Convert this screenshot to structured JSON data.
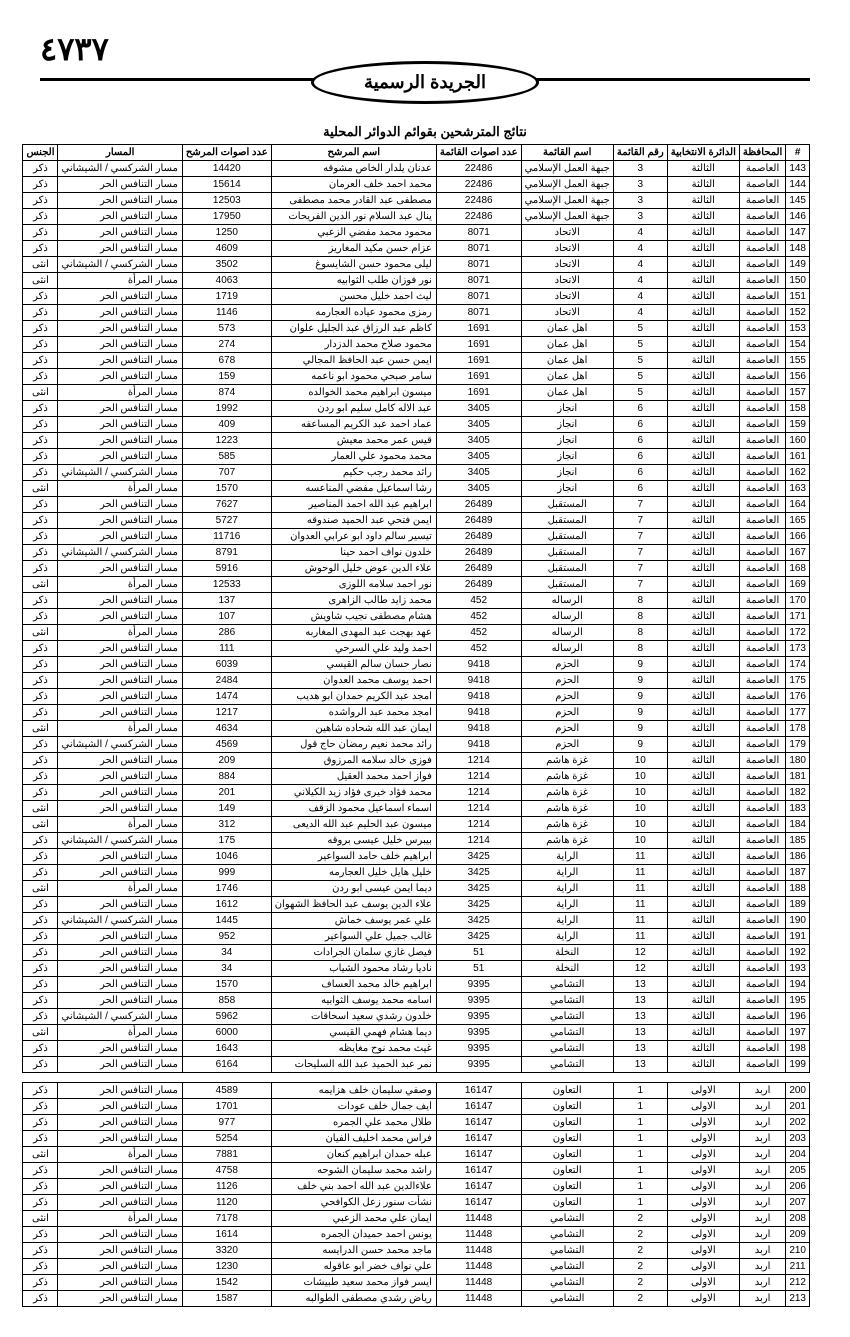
{
  "page_number": "٤٧٣٧",
  "gazette_title": "الجريدة الرسمية",
  "table_title": "نتائج المترشحين بقوائم الدوائر المحلية",
  "columns": [
    "#",
    "المحافظة",
    "الدائرة الانتخابية",
    "رقم القائمة",
    "اسم القائمة",
    "عدد اصوات القائمة",
    "اسم المرشح",
    "عدد اصوات المرشح",
    "المسار",
    "الجنس"
  ],
  "rows1": [
    [
      "143",
      "العاصمة",
      "الثالثة",
      "3",
      "جبهة العمل الإسلامي",
      "22486",
      "عدنان يلدار الخاص مشوقه",
      "14420",
      "مسار الشركسي / الشيشاني",
      "ذكر"
    ],
    [
      "144",
      "العاصمة",
      "الثالثة",
      "3",
      "جبهة العمل الإسلامي",
      "22486",
      "محمد احمد خلف العرمان",
      "15614",
      "مسار التنافس الحر",
      "ذكر"
    ],
    [
      "145",
      "العاصمة",
      "الثالثة",
      "3",
      "جبهة العمل الإسلامي",
      "22486",
      "مصطفى عبد القادر محمد مصطفى",
      "12503",
      "مسار التنافس الحر",
      "ذكر"
    ],
    [
      "146",
      "العاصمة",
      "الثالثة",
      "3",
      "جبهة العمل الإسلامي",
      "22486",
      "ينال عبد السلام نور الدين الفريحات",
      "17950",
      "مسار التنافس الحر",
      "ذكر"
    ],
    [
      "147",
      "العاصمة",
      "الثالثة",
      "4",
      "الاتحاد",
      "8071",
      "محمود محمد مفضي الزعبي",
      "1250",
      "مسار التنافس الحر",
      "ذكر"
    ],
    [
      "148",
      "العاصمة",
      "الثالثة",
      "4",
      "الاتحاد",
      "8071",
      "عزام حسن مكيد المغاريز",
      "4609",
      "مسار التنافس الحر",
      "ذكر"
    ],
    [
      "149",
      "العاصمة",
      "الثالثة",
      "4",
      "الاتحاد",
      "8071",
      "ليلى محمود حسن الشايسوغ",
      "3502",
      "مسار الشركسي / الشيشاني",
      "انثى"
    ],
    [
      "150",
      "العاصمة",
      "الثالثة",
      "4",
      "الاتحاد",
      "8071",
      "نور فوزان طلب الثوابيه",
      "4063",
      "مسار المرأة",
      "انثى"
    ],
    [
      "151",
      "العاصمة",
      "الثالثة",
      "4",
      "الاتحاد",
      "8071",
      "ليث احمد خليل محسن",
      "1719",
      "مسار التنافس الحر",
      "ذكر"
    ],
    [
      "152",
      "العاصمة",
      "الثالثة",
      "4",
      "الاتحاد",
      "8071",
      "رمزى محمود عياده العجارمه",
      "1146",
      "مسار التنافس الحر",
      "ذكر"
    ],
    [
      "153",
      "العاصمة",
      "الثالثة",
      "5",
      "اهل عمان",
      "1691",
      "كاظم عبد الرزاق عبد الجليل علوان",
      "573",
      "مسار التنافس الحر",
      "ذكر"
    ],
    [
      "154",
      "العاصمة",
      "الثالثة",
      "5",
      "اهل عمان",
      "1691",
      "محمود صلاح محمد الدزدار",
      "274",
      "مسار التنافس الحر",
      "ذكر"
    ],
    [
      "155",
      "العاصمة",
      "الثالثة",
      "5",
      "اهل عمان",
      "1691",
      "ايمن حسن عبد الحافظ المجالي",
      "678",
      "مسار التنافس الحر",
      "ذكر"
    ],
    [
      "156",
      "العاصمة",
      "الثالثة",
      "5",
      "اهل عمان",
      "1691",
      "سامر صبحي محمود ابو ناعمه",
      "159",
      "مسار التنافس الحر",
      "ذكر"
    ],
    [
      "157",
      "العاصمة",
      "الثالثة",
      "5",
      "اهل عمان",
      "1691",
      "ميسون ابراهيم محمد الخوالده",
      "874",
      "مسار المرأة",
      "انثى"
    ],
    [
      "158",
      "العاصمة",
      "الثالثة",
      "6",
      "انجاز",
      "3405",
      "عبد الاله كامل سليم ابو ردن",
      "1992",
      "مسار التنافس الحر",
      "ذكر"
    ],
    [
      "159",
      "العاصمة",
      "الثالثة",
      "6",
      "انجاز",
      "3405",
      "عماد احمد عبد الكريم المساعفه",
      "409",
      "مسار التنافس الحر",
      "ذكر"
    ],
    [
      "160",
      "العاصمة",
      "الثالثة",
      "6",
      "انجاز",
      "3405",
      "قيس عمر محمد معيش",
      "1223",
      "مسار التنافس الحر",
      "ذكر"
    ],
    [
      "161",
      "العاصمة",
      "الثالثة",
      "6",
      "انجاز",
      "3405",
      "محمد محمود علي العمار",
      "585",
      "مسار التنافس الحر",
      "ذكر"
    ],
    [
      "162",
      "العاصمة",
      "الثالثة",
      "6",
      "انجاز",
      "3405",
      "رائد محمد رجب حكيم",
      "707",
      "مسار الشركسي / الشيشاني",
      "ذكر"
    ],
    [
      "163",
      "العاصمة",
      "الثالثة",
      "6",
      "انجاز",
      "3405",
      "رشا اسماعيل مفضي المناعسه",
      "1570",
      "مسار المرأة",
      "انثى"
    ],
    [
      "164",
      "العاصمة",
      "الثالثة",
      "7",
      "المستقبل",
      "26489",
      "ابراهيم عبد الله احمد المناصير",
      "7627",
      "مسار التنافس الحر",
      "ذكر"
    ],
    [
      "165",
      "العاصمة",
      "الثالثة",
      "7",
      "المستقبل",
      "26489",
      "ايمن فتحي عبد الحميد صندوقه",
      "5727",
      "مسار التنافس الحر",
      "ذكر"
    ],
    [
      "166",
      "العاصمة",
      "الثالثة",
      "7",
      "المستقبل",
      "26489",
      "تيسير سالم داود ابو عرابي العدوان",
      "11716",
      "مسار التنافس الحر",
      "ذكر"
    ],
    [
      "167",
      "العاصمة",
      "الثالثة",
      "7",
      "المستقبل",
      "26489",
      "خلدون نواف احمد حينا",
      "8791",
      "مسار الشركسي / الشيشاني",
      "ذكر"
    ],
    [
      "168",
      "العاصمة",
      "الثالثة",
      "7",
      "المستقبل",
      "26489",
      "علاء الدين عوض خليل الوحوش",
      "5916",
      "مسار التنافس الحر",
      "ذكر"
    ],
    [
      "169",
      "العاصمة",
      "الثالثة",
      "7",
      "المستقبل",
      "26489",
      "نور احمد سلامه اللوزى",
      "12533",
      "مسار المرأة",
      "انثى"
    ],
    [
      "170",
      "العاصمة",
      "الثالثة",
      "8",
      "الرساله",
      "452",
      "محمد زايد طالب الزاهرى",
      "137",
      "مسار التنافس الحر",
      "ذكر"
    ],
    [
      "171",
      "العاصمة",
      "الثالثة",
      "8",
      "الرساله",
      "452",
      "هشام مصطفى نجيب شاويش",
      "107",
      "مسار التنافس الحر",
      "ذكر"
    ],
    [
      "172",
      "العاصمة",
      "الثالثة",
      "8",
      "الرساله",
      "452",
      "عهد بهجت عبد المهدى المغاربه",
      "286",
      "مسار المرأة",
      "انثى"
    ],
    [
      "173",
      "العاصمة",
      "الثالثة",
      "8",
      "الرساله",
      "452",
      "احمد وليد علي السرحي",
      "111",
      "مسار التنافس الحر",
      "ذكر"
    ],
    [
      "174",
      "العاصمة",
      "الثالثة",
      "9",
      "الحزم",
      "9418",
      "نصار حسان سالم القيسي",
      "6039",
      "مسار التنافس الحر",
      "ذكر"
    ],
    [
      "175",
      "العاصمة",
      "الثالثة",
      "9",
      "الحزم",
      "9418",
      "احمد يوسف محمد العدوان",
      "2484",
      "مسار التنافس الحر",
      "ذكر"
    ],
    [
      "176",
      "العاصمة",
      "الثالثة",
      "9",
      "الحزم",
      "9418",
      "امجد عبد الكريم حمدان ابو هديب",
      "1474",
      "مسار التنافس الحر",
      "ذكر"
    ],
    [
      "177",
      "العاصمة",
      "الثالثة",
      "9",
      "الحزم",
      "9418",
      "امجد محمد عبد الرواشده",
      "1217",
      "مسار التنافس الحر",
      "ذكر"
    ],
    [
      "178",
      "العاصمة",
      "الثالثة",
      "9",
      "الحزم",
      "9418",
      "ايمان عبد الله شحاده شاهين",
      "4634",
      "مسار المرأة",
      "انثى"
    ],
    [
      "179",
      "العاصمة",
      "الثالثة",
      "9",
      "الحزم",
      "9418",
      "رائد محمد نعيم رمضان حاج قول",
      "4569",
      "مسار الشركسي / الشيشاني",
      "ذكر"
    ],
    [
      "180",
      "العاصمة",
      "الثالثة",
      "10",
      "غزة هاشم",
      "1214",
      "فوزى خالد سلامه المرزوق",
      "209",
      "مسار التنافس الحر",
      "ذكر"
    ],
    [
      "181",
      "العاصمة",
      "الثالثة",
      "10",
      "غزة هاشم",
      "1214",
      "فواز احمد محمد العقيل",
      "884",
      "مسار التنافس الحر",
      "ذكر"
    ],
    [
      "182",
      "العاصمة",
      "الثالثة",
      "10",
      "غزة هاشم",
      "1214",
      "محمد فؤاد خيرى فؤاد زيد الكيلاني",
      "201",
      "مسار التنافس الحر",
      "ذكر"
    ],
    [
      "183",
      "العاصمة",
      "الثالثة",
      "10",
      "غزة هاشم",
      "1214",
      "اسماء اسماعيل محمود الزقف",
      "149",
      "مسار التنافس الحر",
      "انثى"
    ],
    [
      "184",
      "العاصمة",
      "الثالثة",
      "10",
      "غزة هاشم",
      "1214",
      "ميسون عبد الحليم عبد الله الديعى",
      "312",
      "مسار المرأة",
      "انثى"
    ],
    [
      "185",
      "العاصمة",
      "الثالثة",
      "10",
      "غزة هاشم",
      "1214",
      "بيبرس خليل عيسى بروقه",
      "175",
      "مسار الشركسي / الشيشاني",
      "ذكر"
    ],
    [
      "186",
      "العاصمة",
      "الثالثة",
      "11",
      "الراية",
      "3425",
      "ابراهيم خلف حامد السواعير",
      "1046",
      "مسار التنافس الحر",
      "ذكر"
    ],
    [
      "187",
      "العاصمة",
      "الثالثة",
      "11",
      "الراية",
      "3425",
      "خليل هايل خليل العجارمه",
      "999",
      "مسار التنافس الحر",
      "ذكر"
    ],
    [
      "188",
      "العاصمة",
      "الثالثة",
      "11",
      "الراية",
      "3425",
      "ديما ايمن عيسى ابو ردن",
      "1746",
      "مسار المرأة",
      "انثى"
    ],
    [
      "189",
      "العاصمة",
      "الثالثة",
      "11",
      "الراية",
      "3425",
      "علاء الدين يوسف عبد الحافظ الشهوان",
      "1612",
      "مسار التنافس الحر",
      "ذكر"
    ],
    [
      "190",
      "العاصمة",
      "الثالثة",
      "11",
      "الراية",
      "3425",
      "علي عمر يوسف خماش",
      "1445",
      "مسار الشركسي / الشيشاني",
      "ذكر"
    ],
    [
      "191",
      "العاصمة",
      "الثالثة",
      "11",
      "الراية",
      "3425",
      "غالب جميل علي السواعير",
      "952",
      "مسار التنافس الحر",
      "ذكر"
    ],
    [
      "192",
      "العاصمة",
      "الثالثة",
      "12",
      "النخلة",
      "51",
      "فيصل غازي سلمان الجرادات",
      "34",
      "مسار التنافس الحر",
      "ذكر"
    ],
    [
      "193",
      "العاصمة",
      "الثالثة",
      "12",
      "النخلة",
      "51",
      "ناديا رشاد محمود الشياب",
      "34",
      "مسار التنافس الحر",
      "ذكر"
    ],
    [
      "194",
      "العاصمة",
      "الثالثة",
      "13",
      "التشامي",
      "9395",
      "ابراهيم خالد محمد العساف",
      "1570",
      "مسار التنافس الحر",
      "ذكر"
    ],
    [
      "195",
      "العاصمة",
      "الثالثة",
      "13",
      "التشامي",
      "9395",
      "اسامه محمد يوسف الثوابيه",
      "858",
      "مسار التنافس الحر",
      "ذكر"
    ],
    [
      "196",
      "العاصمة",
      "الثالثة",
      "13",
      "التشامي",
      "9395",
      "خلدون رشدي سعيد اسحاقات",
      "5962",
      "مسار الشركسي / الشيشاني",
      "ذكر"
    ],
    [
      "197",
      "العاصمة",
      "الثالثة",
      "13",
      "التشامي",
      "9395",
      "ديما هشام فهمي القيسي",
      "6000",
      "مسار المرأة",
      "انثى"
    ],
    [
      "198",
      "العاصمة",
      "الثالثة",
      "13",
      "التشامي",
      "9395",
      "غيث محمد نوح مغايظه",
      "1643",
      "مسار التنافس الحر",
      "ذكر"
    ],
    [
      "199",
      "العاصمة",
      "الثالثة",
      "13",
      "التشامي",
      "9395",
      "نمر عبد الحميد عبد الله السليحات",
      "6164",
      "مسار التنافس الحر",
      "ذكر"
    ]
  ],
  "rows2": [
    [
      "200",
      "اربد",
      "الاولى",
      "1",
      "التعاون",
      "16147",
      "وصفي سليمان خلف هزايمه",
      "4589",
      "مسار التنافس الحر",
      "ذكر"
    ],
    [
      "201",
      "اربد",
      "الاولى",
      "1",
      "التعاون",
      "16147",
      "ايف جمال خلف عودات",
      "1701",
      "مسار التنافس الحر",
      "ذكر"
    ],
    [
      "202",
      "اربد",
      "الاولى",
      "1",
      "التعاون",
      "16147",
      "طلال محمد علي الجمره",
      "977",
      "مسار التنافس الحر",
      "ذكر"
    ],
    [
      "203",
      "اربد",
      "الاولى",
      "1",
      "التعاون",
      "16147",
      "فراس محمد اخليف الفيان",
      "5254",
      "مسار التنافس الحر",
      "ذكر"
    ],
    [
      "204",
      "اربد",
      "الاولى",
      "1",
      "التعاون",
      "16147",
      "عبله حمدان ابراهيم كنعان",
      "7881",
      "مسار المرأة",
      "انثى"
    ],
    [
      "205",
      "اربد",
      "الاولى",
      "1",
      "التعاون",
      "16147",
      "راشد محمد سليمان الشوحه",
      "4758",
      "مسار التنافس الحر",
      "ذكر"
    ],
    [
      "206",
      "اربد",
      "الاولى",
      "1",
      "التعاون",
      "16147",
      "علاءالدين عبد الله احمد بني خلف",
      "1126",
      "مسار التنافس الحر",
      "ذكر"
    ],
    [
      "207",
      "اربد",
      "الاولى",
      "1",
      "التعاون",
      "16147",
      "نشأت سنور زعل الكوافحي",
      "1120",
      "مسار التنافس الحر",
      "ذكر"
    ],
    [
      "208",
      "اربد",
      "الاولى",
      "2",
      "التشامي",
      "11448",
      "ايمان علي محمد الزعبي",
      "7178",
      "مسار المرأة",
      "انثى"
    ],
    [
      "209",
      "اربد",
      "الاولى",
      "2",
      "التشامي",
      "11448",
      "يونس احمد حميدان الجمره",
      "1614",
      "مسار التنافس الحر",
      "ذكر"
    ],
    [
      "210",
      "اربد",
      "الاولى",
      "2",
      "التشامي",
      "11448",
      "ماجد محمد حسن الدرايسه",
      "3320",
      "مسار التنافس الحر",
      "ذكر"
    ],
    [
      "211",
      "اربد",
      "الاولى",
      "2",
      "التشامي",
      "11448",
      "علي نواف خضر ابو عاقوله",
      "1230",
      "مسار التنافس الحر",
      "ذكر"
    ],
    [
      "212",
      "اربد",
      "الاولى",
      "2",
      "التشامي",
      "11448",
      "ايسر فواز محمد سعيد طبيشات",
      "1542",
      "مسار التنافس الحر",
      "ذكر"
    ],
    [
      "213",
      "اربد",
      "الاولى",
      "2",
      "التشامي",
      "11448",
      "رياض رشدي مصطفى الطوالبه",
      "1587",
      "مسار التنافس الحر",
      "ذكر"
    ]
  ]
}
